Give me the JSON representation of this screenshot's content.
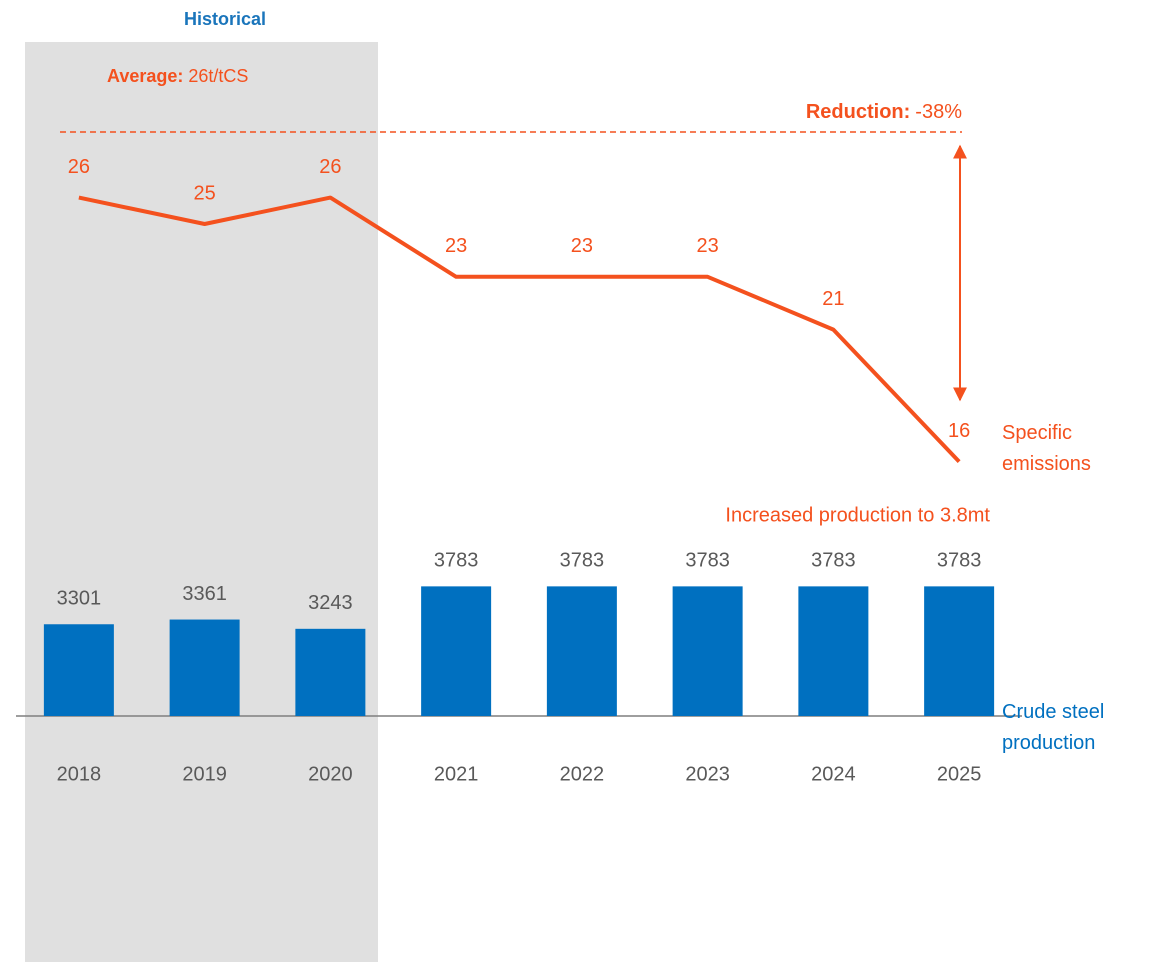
{
  "chart_data": {
    "type": "combo",
    "categories": [
      "2018",
      "2019",
      "2020",
      "2021",
      "2022",
      "2023",
      "2024",
      "2025"
    ],
    "series": [
      {
        "name": "Crude steel production",
        "type": "bar",
        "color": "#0070c0",
        "values": [
          3301,
          3361,
          3243,
          3783,
          3783,
          3783,
          3783,
          3783
        ]
      },
      {
        "name": "Specific emissions",
        "type": "line",
        "axis": "y2",
        "color": "#f4511e",
        "values": [
          26,
          25,
          26,
          23,
          23,
          23,
          21,
          16
        ]
      }
    ],
    "ylim": [
      2134,
      4500
    ],
    "y2lim": [
      10,
      30
    ],
    "annotations": {
      "historical": "Historical",
      "average_label": "Average:",
      "average_value": "26t/tCS",
      "reduction_label": "Reduction:",
      "reduction_value": "-38%",
      "production": "Increased production to 3.8mt"
    }
  }
}
